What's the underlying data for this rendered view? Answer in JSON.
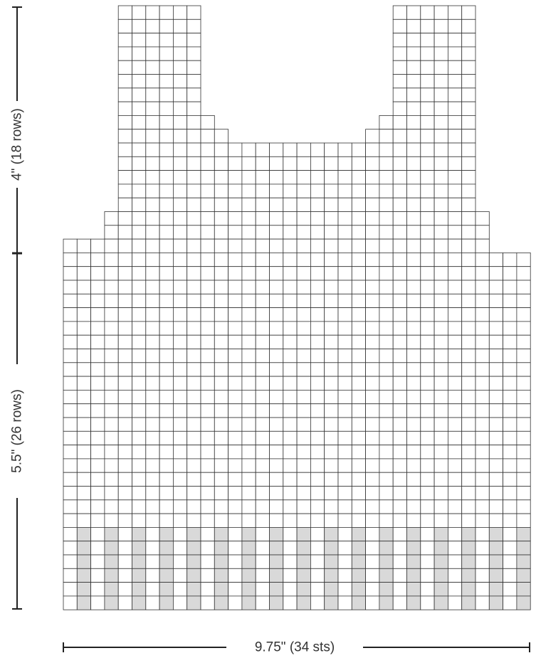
{
  "diagram": {
    "type": "knitting-chart",
    "measurements": {
      "top_height": "4\" (18 rows)",
      "bottom_height": "5.5\" (26 rows)",
      "width": "9.75\" (34 sts)"
    },
    "stitches": 34,
    "rows_total": 44,
    "colors": {
      "grid_line": "#333333",
      "cell_fill": "#ffffff",
      "shaded_fill": "#d9d9d9",
      "dimension_line": "#222222",
      "text": "#333333"
    },
    "row_spans_from_top": [
      {
        "rows": 8,
        "segments": [
          [
            4,
            9
          ],
          [
            24,
            29
          ]
        ]
      },
      {
        "rows": 1,
        "segments": [
          [
            4,
            10
          ],
          [
            23,
            29
          ]
        ]
      },
      {
        "rows": 1,
        "segments": [
          [
            4,
            11
          ],
          [
            22,
            29
          ]
        ]
      },
      {
        "rows": 5,
        "segments": [
          [
            4,
            29
          ]
        ]
      },
      {
        "rows": 2,
        "segments": [
          [
            3,
            30
          ]
        ]
      },
      {
        "rows": 1,
        "segments": [
          [
            0,
            30
          ]
        ]
      },
      {
        "rows": 20,
        "segments": [
          [
            0,
            33
          ]
        ]
      },
      {
        "rows": 6,
        "segments": [
          [
            0,
            33
          ]
        ],
        "shaded_columns": [
          1,
          3,
          5,
          7,
          9,
          11,
          13,
          15,
          17,
          19,
          21,
          23,
          25,
          27,
          29,
          31,
          33
        ]
      }
    ]
  }
}
